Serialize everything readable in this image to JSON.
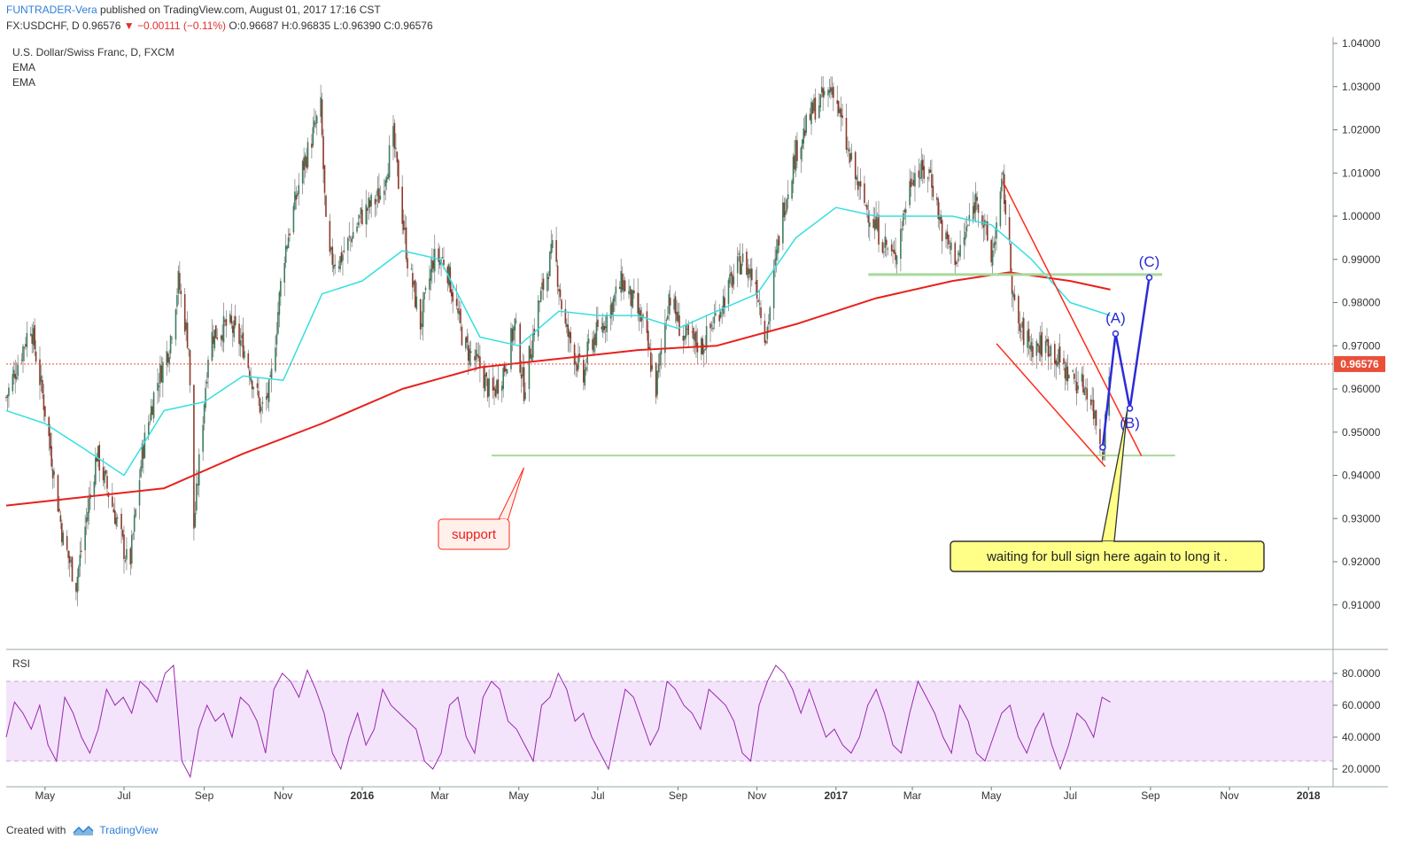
{
  "header": {
    "author": "FUNTRADER-Vera",
    "published": "published on TradingView.com, August 01, 2017 17:16 CST",
    "symbol": "FX:USDCHF, D",
    "last": "0.96576",
    "change": "−0.00111 (−0.11%)",
    "open": "O:0.96687",
    "high": "H:0.96835",
    "low": "L:0.96390",
    "close": "C:0.96576"
  },
  "legend": {
    "title": "U.S. Dollar/Swiss Franc, D, FXCM",
    "ema1": "EMA",
    "ema2": "EMA"
  },
  "footer": {
    "created_with": "Created with",
    "brand": "TradingView"
  },
  "colors": {
    "up_candle": "#3f7d5e",
    "down_candle": "#8c3a2a",
    "ema_fast": "#35dfe0",
    "ema_slow": "#e8201d",
    "support_line": "#a9d89a",
    "wedge": "#ff2a1a",
    "elliott": "#2b2bd8",
    "rsi_line": "#9b27b0",
    "rsi_band": "#f3e4fb",
    "price_tag": "#e8503a",
    "callout_fill": "#ffff88"
  },
  "chart_data": {
    "type": "candlestick",
    "title": "U.S. Dollar/Swiss Franc, D, FXCM",
    "symbol": "USDCHF",
    "timeframe": "D",
    "ylim": [
      0.9,
      1.04
    ],
    "yticks": [
      "1.04000",
      "1.03000",
      "1.02000",
      "1.01000",
      "1.00000",
      "0.99000",
      "0.98000",
      "0.97000",
      "0.96000",
      "0.95000",
      "0.94000",
      "0.93000",
      "0.92000",
      "0.91000"
    ],
    "current_price": 0.96576,
    "current_price_label": "0.96576",
    "xticks": [
      {
        "label": "May",
        "date": "2015-05-01"
      },
      {
        "label": "Jul",
        "date": "2015-07-01"
      },
      {
        "label": "Sep",
        "date": "2015-09-01"
      },
      {
        "label": "Nov",
        "date": "2015-11-01"
      },
      {
        "label": "2016",
        "date": "2016-01-01"
      },
      {
        "label": "Mar",
        "date": "2016-03-01"
      },
      {
        "label": "May",
        "date": "2016-05-01"
      },
      {
        "label": "Jul",
        "date": "2016-07-01"
      },
      {
        "label": "Sep",
        "date": "2016-09-01"
      },
      {
        "label": "Nov",
        "date": "2016-11-01"
      },
      {
        "label": "2017",
        "date": "2017-01-01"
      },
      {
        "label": "Mar",
        "date": "2017-03-01"
      },
      {
        "label": "May",
        "date": "2017-05-01"
      },
      {
        "label": "Jul",
        "date": "2017-07-01"
      },
      {
        "label": "Sep",
        "date": "2017-09-01"
      },
      {
        "label": "Nov",
        "date": "2017-11-01"
      },
      {
        "label": "2018",
        "date": "2018-01-01"
      }
    ],
    "xrange": [
      "2015-04-01",
      "2018-01-20"
    ],
    "price_path": [
      [
        "2015-04-01",
        0.958
      ],
      [
        "2015-04-20",
        0.975
      ],
      [
        "2015-05-01",
        0.955
      ],
      [
        "2015-05-15",
        0.925
      ],
      [
        "2015-05-25",
        0.915
      ],
      [
        "2015-06-10",
        0.945
      ],
      [
        "2015-06-25",
        0.93
      ],
      [
        "2015-07-05",
        0.918
      ],
      [
        "2015-07-15",
        0.945
      ],
      [
        "2015-07-25",
        0.96
      ],
      [
        "2015-08-05",
        0.97
      ],
      [
        "2015-08-12",
        0.985
      ],
      [
        "2015-08-20",
        0.97
      ],
      [
        "2015-08-24",
        0.928
      ],
      [
        "2015-09-05",
        0.972
      ],
      [
        "2015-09-20",
        0.975
      ],
      [
        "2015-10-01",
        0.97
      ],
      [
        "2015-10-15",
        0.955
      ],
      [
        "2015-10-22",
        0.96
      ],
      [
        "2015-11-01",
        0.99
      ],
      [
        "2015-11-15",
        1.01
      ],
      [
        "2015-11-30",
        1.025
      ],
      [
        "2015-12-05",
        0.99
      ],
      [
        "2015-12-15",
        0.99
      ],
      [
        "2015-12-31",
        1.0
      ],
      [
        "2016-01-15",
        1.005
      ],
      [
        "2016-01-25",
        1.018
      ],
      [
        "2016-02-05",
        0.99
      ],
      [
        "2016-02-15",
        0.975
      ],
      [
        "2016-02-25",
        0.99
      ],
      [
        "2016-03-05",
        0.99
      ],
      [
        "2016-03-20",
        0.97
      ],
      [
        "2016-04-01",
        0.965
      ],
      [
        "2016-04-10",
        0.958
      ],
      [
        "2016-04-20",
        0.965
      ],
      [
        "2016-04-28",
        0.975
      ],
      [
        "2016-05-05",
        0.96
      ],
      [
        "2016-05-15",
        0.978
      ],
      [
        "2016-05-28",
        0.993
      ],
      [
        "2016-06-05",
        0.975
      ],
      [
        "2016-06-20",
        0.962
      ],
      [
        "2016-06-24",
        0.97
      ],
      [
        "2016-07-05",
        0.975
      ],
      [
        "2016-07-20",
        0.985
      ],
      [
        "2016-08-05",
        0.975
      ],
      [
        "2016-08-15",
        0.96
      ],
      [
        "2016-08-25",
        0.982
      ],
      [
        "2016-09-05",
        0.972
      ],
      [
        "2016-09-20",
        0.97
      ],
      [
        "2016-10-05",
        0.98
      ],
      [
        "2016-10-20",
        0.99
      ],
      [
        "2016-10-31",
        0.985
      ],
      [
        "2016-11-08",
        0.972
      ],
      [
        "2016-11-20",
        1.0
      ],
      [
        "2016-12-01",
        1.015
      ],
      [
        "2016-12-15",
        1.025
      ],
      [
        "2016-12-30",
        1.03
      ],
      [
        "2017-01-10",
        1.015
      ],
      [
        "2017-01-20",
        1.005
      ],
      [
        "2017-02-05",
        0.995
      ],
      [
        "2017-02-15",
        0.99
      ],
      [
        "2017-03-01",
        1.01
      ],
      [
        "2017-03-15",
        1.01
      ],
      [
        "2017-03-25",
        0.995
      ],
      [
        "2017-04-05",
        0.99
      ],
      [
        "2017-04-20",
        1.005
      ],
      [
        "2017-05-01",
        0.99
      ],
      [
        "2017-05-10",
        1.008
      ],
      [
        "2017-05-20",
        0.975
      ],
      [
        "2017-06-01",
        0.97
      ],
      [
        "2017-06-15",
        0.97
      ],
      [
        "2017-06-25",
        0.965
      ],
      [
        "2017-07-05",
        0.962
      ],
      [
        "2017-07-15",
        0.96
      ],
      [
        "2017-07-26",
        0.946
      ],
      [
        "2017-08-01",
        0.96576
      ]
    ],
    "ema_fast": [
      [
        "2015-04-01",
        0.955
      ],
      [
        "2015-05-01",
        0.952
      ],
      [
        "2015-06-01",
        0.946
      ],
      [
        "2015-07-01",
        0.94
      ],
      [
        "2015-08-01",
        0.955
      ],
      [
        "2015-09-01",
        0.957
      ],
      [
        "2015-10-01",
        0.963
      ],
      [
        "2015-11-01",
        0.962
      ],
      [
        "2015-12-01",
        0.982
      ],
      [
        "2016-01-01",
        0.985
      ],
      [
        "2016-02-01",
        0.992
      ],
      [
        "2016-03-01",
        0.99
      ],
      [
        "2016-04-01",
        0.972
      ],
      [
        "2016-05-01",
        0.97
      ],
      [
        "2016-06-01",
        0.978
      ],
      [
        "2016-07-01",
        0.977
      ],
      [
        "2016-08-01",
        0.977
      ],
      [
        "2016-09-01",
        0.974
      ],
      [
        "2016-10-01",
        0.978
      ],
      [
        "2016-11-01",
        0.982
      ],
      [
        "2016-12-01",
        0.995
      ],
      [
        "2017-01-01",
        1.002
      ],
      [
        "2017-02-01",
        1.0
      ],
      [
        "2017-03-01",
        1.0
      ],
      [
        "2017-04-01",
        1.0
      ],
      [
        "2017-05-01",
        0.998
      ],
      [
        "2017-06-01",
        0.99
      ],
      [
        "2017-07-01",
        0.98
      ],
      [
        "2017-08-01",
        0.977
      ]
    ],
    "ema_slow": [
      [
        "2015-04-01",
        0.933
      ],
      [
        "2015-06-01",
        0.935
      ],
      [
        "2015-08-01",
        0.937
      ],
      [
        "2015-10-01",
        0.945
      ],
      [
        "2015-12-01",
        0.952
      ],
      [
        "2016-02-01",
        0.96
      ],
      [
        "2016-04-01",
        0.965
      ],
      [
        "2016-06-01",
        0.967
      ],
      [
        "2016-08-01",
        0.969
      ],
      [
        "2016-10-01",
        0.97
      ],
      [
        "2016-12-01",
        0.975
      ],
      [
        "2017-02-01",
        0.981
      ],
      [
        "2017-04-01",
        0.985
      ],
      [
        "2017-05-15",
        0.987
      ],
      [
        "2017-07-01",
        0.985
      ],
      [
        "2017-08-01",
        0.983
      ]
    ],
    "drawings": {
      "support_line": {
        "y": 0.9446,
        "from": "2016-04-10",
        "to": "2017-09-20"
      },
      "resistance_line": {
        "y": 0.9865,
        "from": "2017-01-26",
        "to": "2017-09-10"
      },
      "wedge_upper": [
        [
          "2017-05-10",
          1.008
        ],
        [
          "2017-08-25",
          0.9445
        ]
      ],
      "wedge_lower": [
        [
          "2017-05-05",
          0.9705
        ],
        [
          "2017-07-28",
          0.942
        ]
      ],
      "elliott_waves": [
        {
          "date": "2017-07-26",
          "value": 0.9465,
          "label": ""
        },
        {
          "date": "2017-08-05",
          "value": 0.9728,
          "label": "(A)"
        },
        {
          "date": "2017-08-16",
          "value": 0.9555,
          "label": "(B)"
        },
        {
          "date": "2017-08-31",
          "value": 0.9858,
          "label": "(C)"
        }
      ],
      "annotations": [
        {
          "text": "support",
          "arrow_to": [
            "2016-05-05",
            0.9418
          ]
        },
        {
          "text": "waiting for bull sign here again to long it .",
          "arrow_to": [
            "2017-08-14",
            0.955
          ]
        }
      ]
    },
    "rsi": {
      "label": "RSI",
      "ylim": [
        10,
        90
      ],
      "yticks": [
        "80.0000",
        "60.0000",
        "40.0000",
        "20.0000"
      ],
      "band": [
        25,
        75
      ],
      "values": [
        40,
        62,
        55,
        45,
        60,
        35,
        25,
        65,
        55,
        40,
        30,
        45,
        70,
        60,
        65,
        55,
        75,
        70,
        62,
        80,
        85,
        25,
        15,
        45,
        60,
        50,
        55,
        40,
        65,
        60,
        50,
        30,
        70,
        80,
        75,
        65,
        82,
        70,
        55,
        30,
        20,
        40,
        55,
        35,
        45,
        70,
        60,
        55,
        50,
        45,
        25,
        20,
        30,
        60,
        65,
        40,
        30,
        65,
        75,
        70,
        50,
        45,
        35,
        25,
        60,
        65,
        80,
        70,
        50,
        55,
        40,
        30,
        20,
        45,
        70,
        65,
        50,
        35,
        45,
        75,
        70,
        60,
        55,
        45,
        70,
        65,
        60,
        50,
        30,
        25,
        60,
        75,
        85,
        80,
        70,
        55,
        70,
        55,
        40,
        45,
        35,
        30,
        40,
        60,
        70,
        55,
        35,
        30,
        55,
        75,
        65,
        55,
        40,
        30,
        60,
        50,
        30,
        25,
        40,
        55,
        60,
        40,
        30,
        45,
        55,
        35,
        20,
        35,
        55,
        50,
        40,
        65,
        62
      ]
    }
  }
}
